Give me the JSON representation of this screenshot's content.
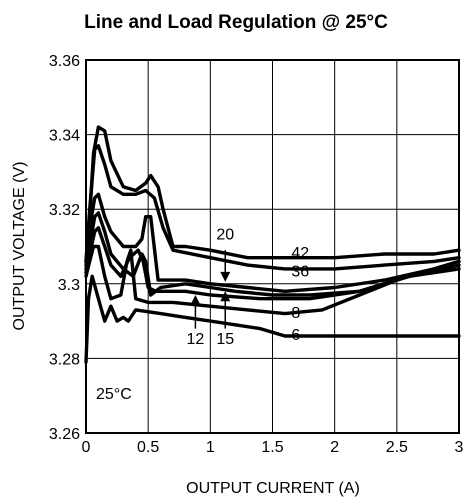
{
  "chart_data": {
    "type": "line",
    "title": "Line and Load Regulation @ 25°C",
    "xlabel": "OUTPUT CURRENT (A)",
    "ylabel": "OUTPUT VOLTAGE (V)",
    "xlim": [
      0,
      3
    ],
    "ylim": [
      3.26,
      3.36
    ],
    "xticks": [
      "0",
      "0.5",
      "1",
      "1.5",
      "2",
      "2.5",
      "3"
    ],
    "yticks": [
      "3.26",
      "3.28",
      "3.3",
      "3.32",
      "3.34",
      "3.36"
    ],
    "grid": true,
    "annotation_text": "25°C",
    "series": [
      {
        "name": "42",
        "x": [
          0,
          0.03,
          0.06,
          0.1,
          0.15,
          0.2,
          0.3,
          0.4,
          0.48,
          0.52,
          0.58,
          0.62,
          0.7,
          0.8,
          1.0,
          1.3,
          1.6,
          2.0,
          2.4,
          2.8,
          3.0
        ],
        "y": [
          3.306,
          3.318,
          3.335,
          3.342,
          3.341,
          3.333,
          3.326,
          3.325,
          3.327,
          3.329,
          3.326,
          3.32,
          3.31,
          3.31,
          3.309,
          3.307,
          3.307,
          3.307,
          3.308,
          3.308,
          3.309
        ]
      },
      {
        "name": "36",
        "x": [
          0,
          0.03,
          0.07,
          0.1,
          0.15,
          0.2,
          0.3,
          0.4,
          0.48,
          0.55,
          0.62,
          0.7,
          1.0,
          1.3,
          1.6,
          2.0,
          2.4,
          2.8,
          3.0
        ],
        "y": [
          3.306,
          3.32,
          3.336,
          3.337,
          3.332,
          3.326,
          3.324,
          3.324,
          3.325,
          3.323,
          3.315,
          3.309,
          3.307,
          3.305,
          3.304,
          3.304,
          3.305,
          3.306,
          3.307
        ]
      },
      {
        "name": "20",
        "x": [
          0,
          0.03,
          0.07,
          0.1,
          0.15,
          0.2,
          0.3,
          0.4,
          0.45,
          0.48,
          0.52,
          0.58,
          0.8,
          1.0,
          1.3,
          1.6,
          2.0,
          2.4,
          2.8,
          3.0
        ],
        "y": [
          3.305,
          3.315,
          3.323,
          3.324,
          3.318,
          3.314,
          3.31,
          3.31,
          3.312,
          3.318,
          3.318,
          3.301,
          3.301,
          3.3,
          3.299,
          3.298,
          3.299,
          3.301,
          3.304,
          3.306
        ]
      },
      {
        "name": "15",
        "x": [
          0,
          0.03,
          0.07,
          0.1,
          0.15,
          0.2,
          0.3,
          0.38,
          0.45,
          0.48,
          0.52,
          0.6,
          0.8,
          1.0,
          1.2,
          1.5,
          1.8,
          2.2,
          2.6,
          3.0
        ],
        "y": [
          3.304,
          3.31,
          3.318,
          3.319,
          3.314,
          3.308,
          3.304,
          3.302,
          3.308,
          3.306,
          3.297,
          3.299,
          3.3,
          3.299,
          3.298,
          3.297,
          3.297,
          3.298,
          3.302,
          3.305
        ]
      },
      {
        "name": "12",
        "x": [
          0,
          0.03,
          0.07,
          0.1,
          0.15,
          0.2,
          0.28,
          0.35,
          0.42,
          0.46,
          0.5,
          0.56,
          0.8,
          1.0,
          1.4,
          1.8,
          2.2,
          2.6,
          3.0
        ],
        "y": [
          3.303,
          3.308,
          3.314,
          3.315,
          3.31,
          3.305,
          3.302,
          3.307,
          3.309,
          3.306,
          3.299,
          3.298,
          3.298,
          3.297,
          3.296,
          3.296,
          3.298,
          3.302,
          3.304
        ]
      },
      {
        "name": "8",
        "x": [
          0,
          0.03,
          0.06,
          0.1,
          0.15,
          0.2,
          0.28,
          0.33,
          0.36,
          0.4,
          0.5,
          0.7,
          1.0,
          1.3,
          1.6,
          1.9,
          2.2,
          2.5,
          2.8,
          3.0
        ],
        "y": [
          3.302,
          3.306,
          3.31,
          3.31,
          3.302,
          3.296,
          3.297,
          3.306,
          3.309,
          3.296,
          3.295,
          3.295,
          3.294,
          3.293,
          3.292,
          3.293,
          3.297,
          3.301,
          3.304,
          3.306
        ]
      },
      {
        "name": "6",
        "x": [
          0,
          0.02,
          0.05,
          0.1,
          0.15,
          0.2,
          0.25,
          0.3,
          0.34,
          0.4,
          0.6,
          0.8,
          1.0,
          1.2,
          1.4,
          1.6,
          2.0,
          2.5,
          3.0
        ],
        "y": [
          3.279,
          3.296,
          3.302,
          3.296,
          3.29,
          3.294,
          3.29,
          3.291,
          3.29,
          3.293,
          3.292,
          3.291,
          3.29,
          3.289,
          3.288,
          3.286,
          3.286,
          3.286,
          3.286
        ]
      }
    ],
    "curve_labels": [
      {
        "text": "42",
        "x": 1.62,
        "y": 3.3085
      },
      {
        "text": "36",
        "x": 1.62,
        "y": 3.3035
      },
      {
        "text": "20",
        "x": 1.12,
        "y": 3.3135
      },
      {
        "text": "15",
        "x": 1.12,
        "y": 3.2855
      },
      {
        "text": "12",
        "x": 0.88,
        "y": 3.2855
      },
      {
        "text": "8",
        "x": 1.62,
        "y": 3.2925
      },
      {
        "text": "6",
        "x": 1.62,
        "y": 3.2865
      }
    ],
    "arrows": [
      {
        "name": "arrow-20",
        "x": 1.12,
        "from_y": 3.309,
        "to_y": 3.3005
      },
      {
        "name": "arrow-15",
        "x": 1.12,
        "from_y": 3.288,
        "to_y": 3.298
      },
      {
        "name": "arrow-12",
        "x": 0.88,
        "from_y": 3.288,
        "to_y": 3.297
      }
    ]
  }
}
